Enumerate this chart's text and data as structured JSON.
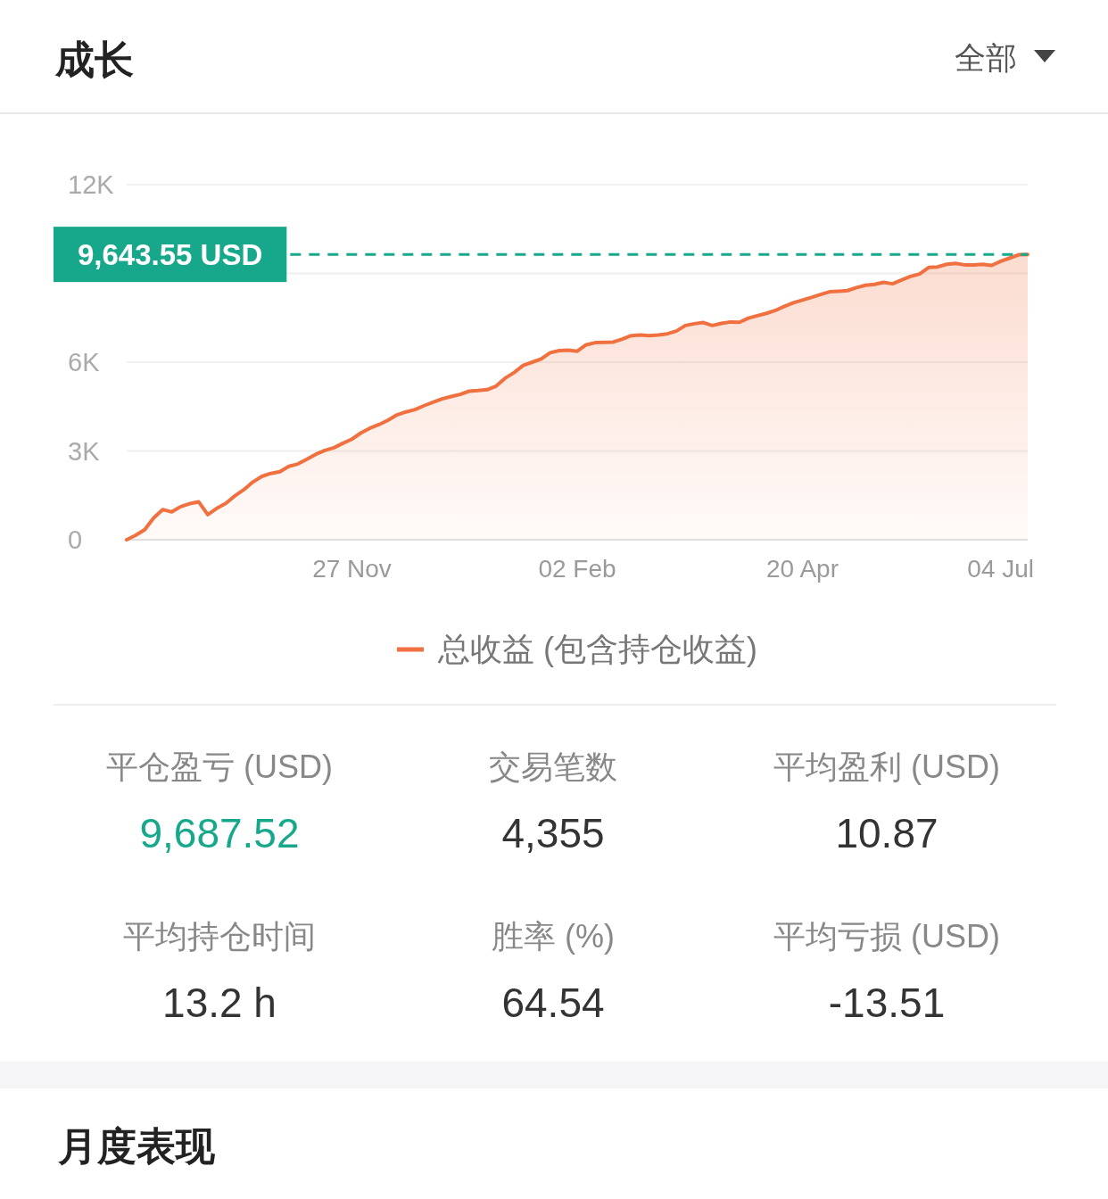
{
  "chart_data": [
    {
      "type": "area",
      "title": "成长",
      "annotations": [
        "全部"
      ],
      "categories": [
        null,
        null,
        null,
        null,
        null,
        null,
        null,
        null,
        null,
        null,
        null,
        null,
        null,
        null,
        null,
        null,
        null,
        null,
        null,
        null,
        null,
        null,
        null,
        null,
        null,
        "27 Nov",
        null,
        null,
        null,
        null,
        null,
        null,
        null,
        null,
        null,
        null,
        null,
        null,
        null,
        null,
        null,
        null,
        null,
        null,
        null,
        null,
        null,
        null,
        null,
        null,
        "02 Feb",
        null,
        null,
        null,
        null,
        null,
        null,
        null,
        null,
        null,
        null,
        null,
        null,
        null,
        null,
        null,
        null,
        null,
        null,
        null,
        null,
        null,
        null,
        null,
        null,
        "20 Apr",
        null,
        null,
        null,
        null,
        null,
        null,
        null,
        null,
        null,
        null,
        null,
        null,
        null,
        null,
        null,
        null,
        null,
        null,
        null,
        null,
        null,
        "04 Jul",
        null,
        null,
        null
      ],
      "series": [
        {
          "name": "总收益 (包含持仓收益)",
          "color": "#f07040",
          "values": [
            0,
            150,
            340,
            740,
            1020,
            940,
            1120,
            1220,
            1280,
            850,
            1060,
            1230,
            1480,
            1690,
            1950,
            2140,
            2240,
            2300,
            2480,
            2560,
            2720,
            2890,
            3020,
            3110,
            3260,
            3400,
            3610,
            3770,
            3890,
            4040,
            4220,
            4320,
            4400,
            4530,
            4650,
            4760,
            4840,
            4910,
            5020,
            5040,
            5070,
            5190,
            5460,
            5650,
            5890,
            6000,
            6110,
            6320,
            6390,
            6410,
            6370,
            6590,
            6660,
            6670,
            6680,
            6780,
            6900,
            6920,
            6900,
            6920,
            6960,
            7050,
            7240,
            7300,
            7340,
            7240,
            7310,
            7360,
            7350,
            7490,
            7570,
            7650,
            7750,
            7890,
            8010,
            8100,
            8190,
            8290,
            8380,
            8400,
            8420,
            8520,
            8600,
            8630,
            8700,
            8650,
            8780,
            8900,
            8980,
            9200,
            9220,
            9310,
            9340,
            9290,
            9290,
            9310,
            9270,
            9410,
            9520,
            9630,
            9640
          ]
        }
      ],
      "ylim": [
        0,
        12000
      ],
      "yticks": [
        0,
        {
          "value": 3000,
          "label": "3K"
        },
        {
          "value": 6000,
          "label": "6K"
        },
        {
          "value": 9000,
          "label": null
        },
        {
          "value": 12000,
          "label": "12K"
        }
      ],
      "grid": "y",
      "legend": "bottom",
      "ref_lines": [
        {
          "axis": "y",
          "value": 9643.55,
          "label": "9,643.55 USD",
          "color": "#17a88b",
          "line_style": "dashed"
        }
      ]
    },
    {
      "type": "other",
      "annotations": [
        "平仓盈亏 (USD)",
        "9,687.52",
        "交易笔数",
        "4,355",
        "平均盈利 (USD)",
        "10.87",
        "平均持仓时间",
        "13.2 h",
        "胜率 (%)",
        "64.54",
        "平均亏损 (USD)",
        "-13.51"
      ]
    },
    {
      "type": "other",
      "title": "月度表现"
    }
  ]
}
